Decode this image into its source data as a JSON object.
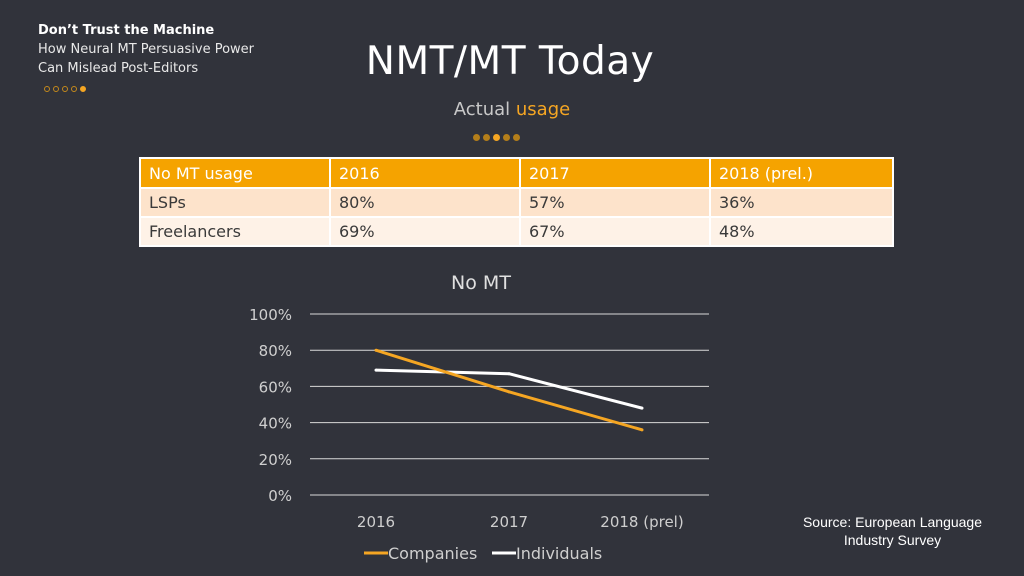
{
  "header": {
    "deck_title": "Don’t Trust the Machine",
    "deck_subtitle_line1": "How Neural MT Persuasive Power",
    "deck_subtitle_line2": "Can Mislead Post-Editors"
  },
  "slide": {
    "title": "NMT/MT Today",
    "subtitle_part1": "Actual ",
    "subtitle_part2": "usage"
  },
  "table": {
    "headers": [
      "No MT usage",
      "2016",
      "2017",
      "2018 (prel.)"
    ],
    "rows": [
      [
        "LSPs",
        "80%",
        "57%",
        "36%"
      ],
      [
        "Freelancers",
        "69%",
        "67%",
        "48%"
      ]
    ]
  },
  "chart_data": {
    "type": "line",
    "title": "No MT",
    "categories": [
      "2016",
      "2017",
      "2018 (prel)"
    ],
    "series": [
      {
        "name": "Companies",
        "values": [
          80,
          57,
          36
        ],
        "color": "#f5a623"
      },
      {
        "name": "Individuals",
        "values": [
          69,
          67,
          48
        ],
        "color": "#ffffff"
      }
    ],
    "ylim": [
      0,
      100
    ],
    "yticks": [
      "0%",
      "20%",
      "40%",
      "60%",
      "80%",
      "100%"
    ],
    "ytick_values": [
      0,
      20,
      40,
      60,
      80,
      100
    ],
    "grid": true,
    "legend_position": "bottom"
  },
  "source": {
    "line1": "Source: European Language",
    "line2": "Industry Survey"
  },
  "colors": {
    "background": "#31333b",
    "accent": "#f5a623",
    "table_header": "#f5a300"
  }
}
